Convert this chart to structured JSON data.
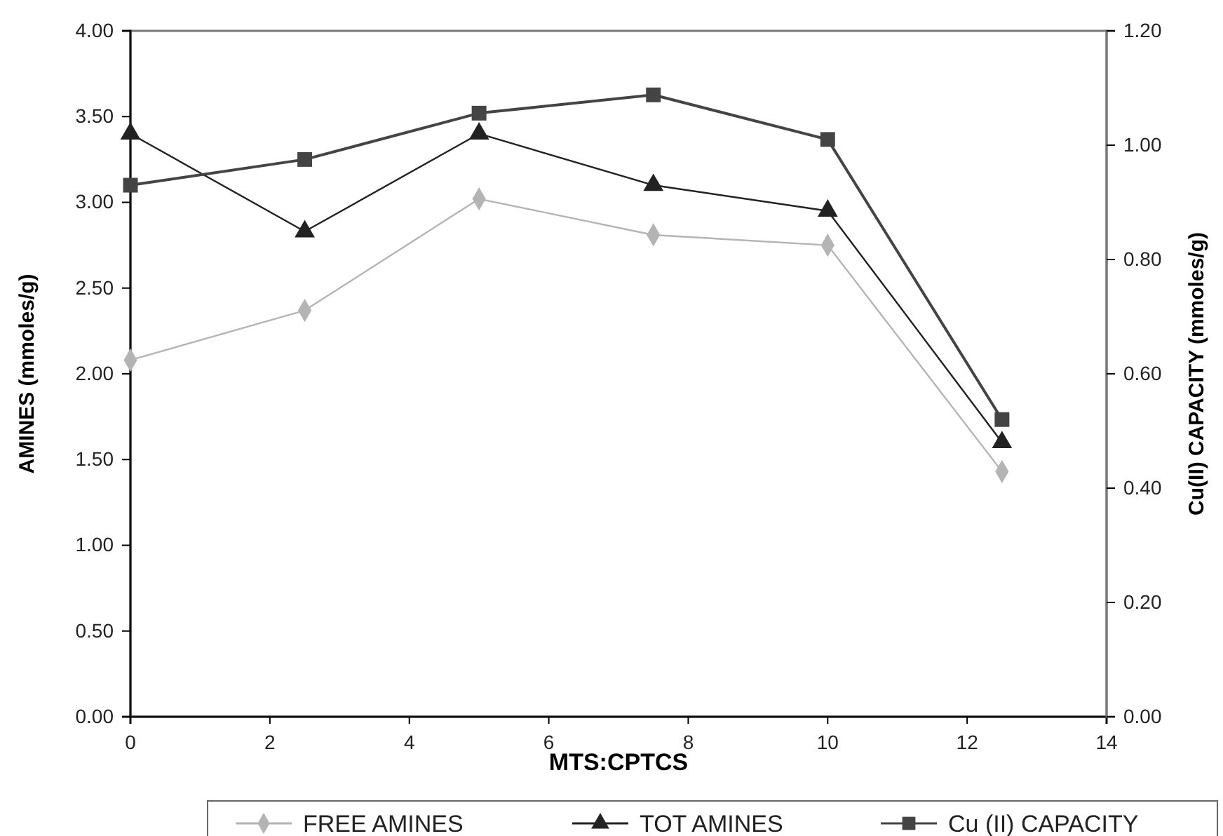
{
  "chart_data": {
    "type": "line",
    "xlabel": "MTS:CPTCS",
    "ylabel": "AMINES (mmoles/g)",
    "y2label": "Cu(II) CAPACITY (mmoles/g)",
    "x": [
      0,
      2.5,
      5,
      7.5,
      10,
      12.5
    ],
    "xlim": [
      0,
      14
    ],
    "xticks": [
      0,
      2,
      4,
      6,
      8,
      10,
      12,
      14
    ],
    "ylim": [
      0,
      4
    ],
    "yticks": [
      {
        "value": 0,
        "label": "0.00"
      },
      {
        "value": 0.5,
        "label": "0.50"
      },
      {
        "value": 1,
        "label": "1.00"
      },
      {
        "value": 1.5,
        "label": "1.50"
      },
      {
        "value": 2,
        "label": "2.00"
      },
      {
        "value": 2.5,
        "label": "2.50"
      },
      {
        "value": 3,
        "label": "3.00"
      },
      {
        "value": 3.5,
        "label": "3.50"
      },
      {
        "value": 4,
        "label": "4.00"
      }
    ],
    "y2lim": [
      0,
      1.2
    ],
    "y2ticks": [
      {
        "value": 0,
        "label": "0.00"
      },
      {
        "value": 0.2,
        "label": "0.20"
      },
      {
        "value": 0.4,
        "label": "0.40"
      },
      {
        "value": 0.6,
        "label": "0.60"
      },
      {
        "value": 0.8,
        "label": "0.80"
      },
      {
        "value": 1,
        "label": "1.00"
      },
      {
        "value": 1.2,
        "label": "1.20"
      }
    ],
    "series": [
      {
        "name": "FREE AMINES",
        "color": "#b4b4b4",
        "marker": "diamond",
        "values": [
          2.08,
          2.37,
          3.02,
          2.81,
          2.75,
          1.43
        ]
      },
      {
        "name": "TOT AMINES",
        "color": "#222222",
        "marker": "triangle",
        "values": [
          3.4,
          2.83,
          3.4,
          3.1,
          2.95,
          1.6
        ]
      },
      {
        "name": "Cu (II) CAPACITY",
        "color": "#444444",
        "marker": "square",
        "axis": "y2",
        "values": [
          0.93,
          0.975,
          1.056,
          1.088,
          1.01,
          0.52
        ]
      }
    ],
    "grid": false,
    "legend": "bottom"
  }
}
